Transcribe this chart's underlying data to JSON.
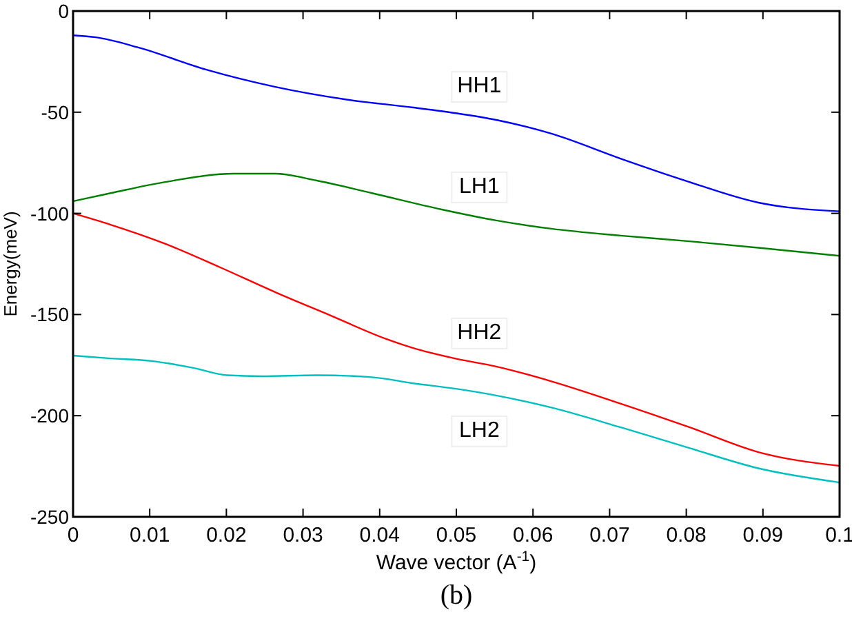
{
  "chart_data": {
    "type": "line",
    "xlabel": "Wave vector (A$^{-1}$)",
    "ylabel": "Energy(meV)",
    "xlim": [
      0,
      0.1
    ],
    "ylim": [
      -250,
      0
    ],
    "xticks": [
      0,
      0.01,
      0.02,
      0.03,
      0.04,
      0.05,
      0.06,
      0.07,
      0.08,
      0.09,
      0.1
    ],
    "yticks": [
      -250,
      -200,
      -150,
      -100,
      -50,
      0
    ],
    "grid": false,
    "marker": "none",
    "line_style": "solid",
    "series": [
      {
        "name": "HH1",
        "color": "#0000ff",
        "x": [
          0,
          0.003,
          0.0085,
          0.0174,
          0.0264,
          0.0354,
          0.0444,
          0.0498,
          0.0552,
          0.0624,
          0.0714,
          0.0804,
          0.0894,
          0.1
        ],
        "values": [
          -12,
          -13,
          -18,
          -29,
          -37.5,
          -43.6,
          -47.7,
          -50.4,
          -53.8,
          -60.6,
          -72.9,
          -84.5,
          -94.7,
          -99
        ]
      },
      {
        "name": "LH1",
        "color": "#008000",
        "x": [
          0,
          0.0049,
          0.012,
          0.021,
          0.0264,
          0.0318,
          0.039,
          0.048,
          0.0552,
          0.0624,
          0.0714,
          0.0804,
          0.0894,
          0.1
        ],
        "values": [
          -94,
          -90,
          -84.5,
          -80.4,
          -80.4,
          -83.8,
          -90,
          -98,
          -103.5,
          -107.6,
          -111,
          -113.8,
          -117,
          -121
        ]
      },
      {
        "name": "HH2",
        "color": "#ff0000",
        "x": [
          0,
          0.0049,
          0.012,
          0.0192,
          0.0264,
          0.0336,
          0.0408,
          0.0444,
          0.0498,
          0.0552,
          0.0624,
          0.0714,
          0.0804,
          0.0894,
          0.1
        ],
        "values": [
          -100,
          -105.6,
          -115,
          -126.7,
          -139,
          -150.5,
          -162,
          -166.6,
          -171.7,
          -175.7,
          -183,
          -194,
          -205.7,
          -218,
          -224.8
        ]
      },
      {
        "name": "LH2",
        "color": "#00bfbf",
        "x": [
          0,
          0.0049,
          0.0103,
          0.0157,
          0.0201,
          0.0246,
          0.0318,
          0.039,
          0.0444,
          0.0498,
          0.0552,
          0.0624,
          0.0714,
          0.0804,
          0.0894,
          0.1
        ],
        "values": [
          -170.3,
          -171.7,
          -173,
          -176.4,
          -180,
          -180.5,
          -180,
          -181,
          -184,
          -186.6,
          -190,
          -196,
          -205.7,
          -216,
          -226,
          -233
        ]
      }
    ],
    "annotations": [
      "(b)"
    ]
  }
}
